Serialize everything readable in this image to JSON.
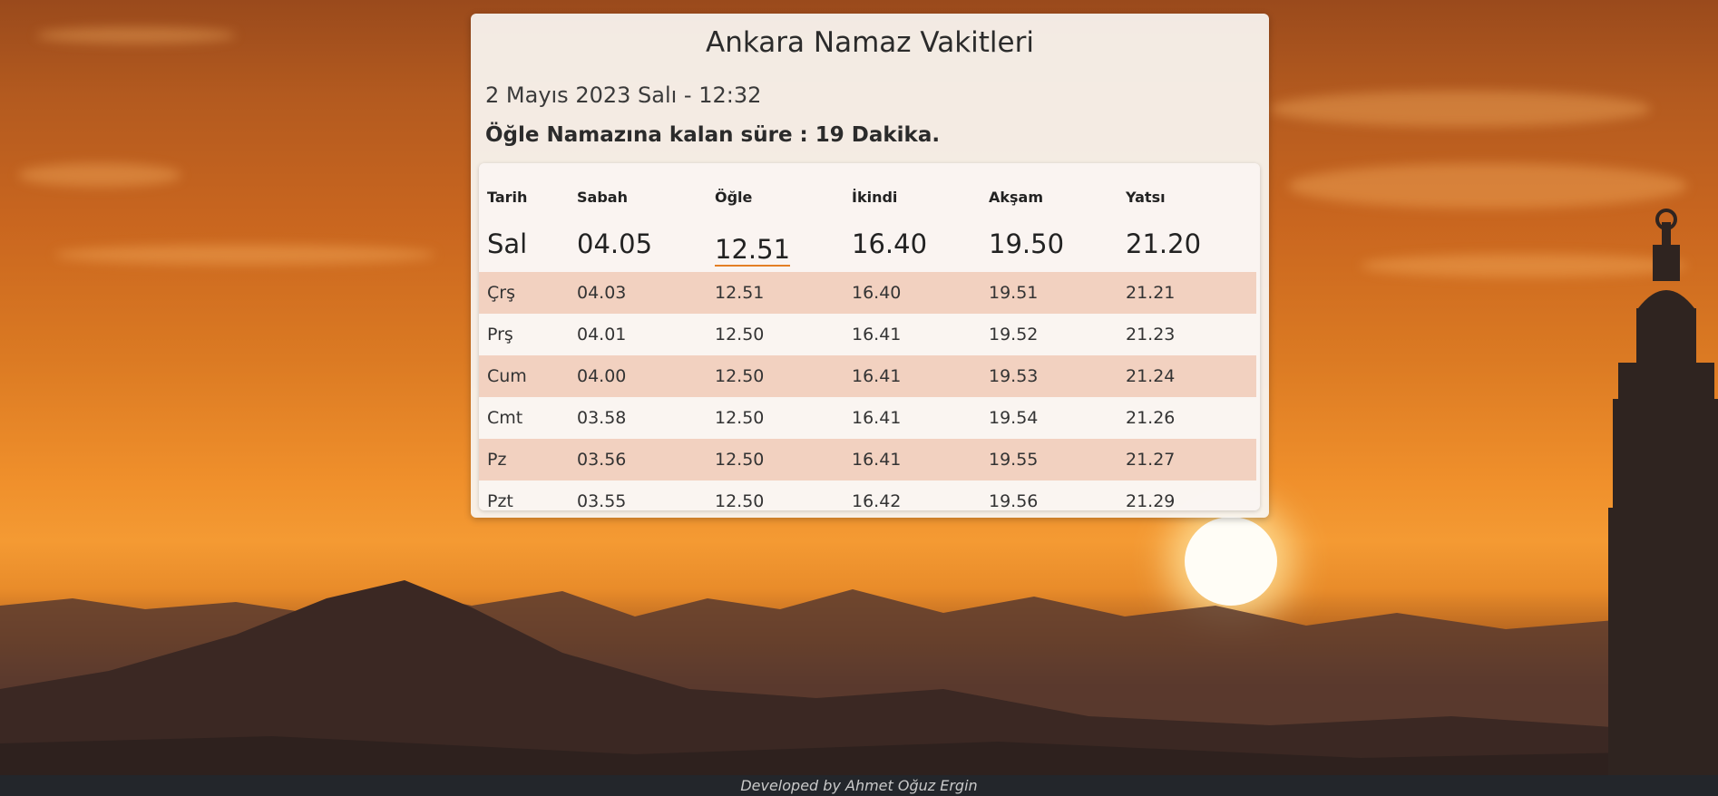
{
  "title": "Ankara Namaz Vakitleri",
  "datetime": "2 Mayıs 2023 Salı - 12:32",
  "remaining": "Öğle Namazına kalan süre : 19 Dakika.",
  "table": {
    "headers": [
      "Tarih",
      "Sabah",
      "Öğle",
      "İkindi",
      "Akşam",
      "Yatsı"
    ],
    "today": [
      "Sal",
      "04.05",
      "12.51",
      "16.40",
      "19.50",
      "21.20"
    ],
    "rows": [
      [
        "Çrş",
        "04.03",
        "12.51",
        "16.40",
        "19.51",
        "21.21"
      ],
      [
        "Prş",
        "04.01",
        "12.50",
        "16.41",
        "19.52",
        "21.23"
      ],
      [
        "Cum",
        "04.00",
        "12.50",
        "16.41",
        "19.53",
        "21.24"
      ],
      [
        "Cmt",
        "03.58",
        "12.50",
        "16.41",
        "19.54",
        "21.26"
      ],
      [
        "Pz",
        "03.56",
        "12.50",
        "16.41",
        "19.55",
        "21.27"
      ],
      [
        "Pzt",
        "03.55",
        "12.50",
        "16.42",
        "19.56",
        "21.29"
      ]
    ]
  },
  "footer": "Developed by Ahmet Oğuz Ergin",
  "colors": {
    "accent_underline": "#e47f25",
    "shaded_row": "#f0c8b4",
    "footer_bg": "#23262b"
  },
  "background_scene": "sunset sky with mountains and minaret silhouette"
}
